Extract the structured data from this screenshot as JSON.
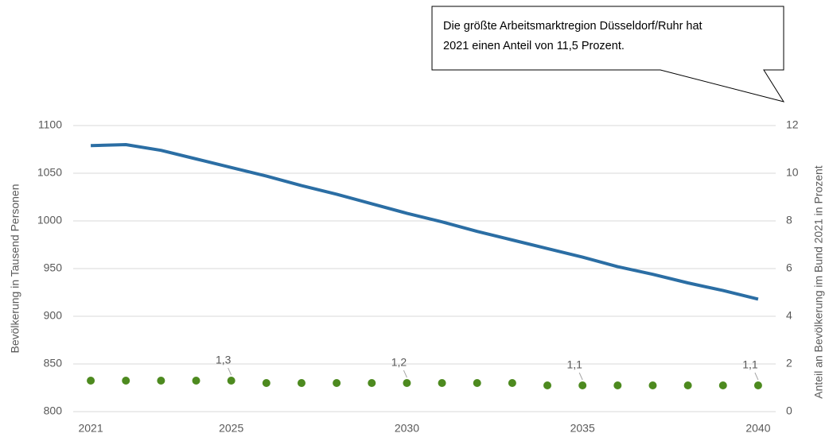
{
  "chart_data": {
    "type": "line",
    "annotation": [
      "Die größte Arbeitsmarktregion Düsseldorf/Ruhr hat",
      "2021 einen Anteil von 11,5 Prozent."
    ],
    "ylabel": "Bevölkerung in Tausend Personen",
    "y2label": "Anteil an Bevölkerung im Bund 2021 in Prozent",
    "categories": [
      "2021",
      null,
      null,
      null,
      "2025",
      null,
      null,
      null,
      null,
      "2030",
      null,
      null,
      null,
      null,
      "2035",
      null,
      null,
      null,
      null,
      "2040"
    ],
    "series": [
      {
        "name": "Bevölkerung",
        "type": "line",
        "color": "#2b6ea4",
        "axis": "y",
        "values": [
          1079,
          1080,
          1074,
          1065,
          1056,
          1047,
          1037,
          1028,
          1018,
          1008,
          999,
          989,
          980,
          971,
          962,
          952,
          944,
          935,
          927,
          918
        ]
      },
      {
        "name": "Anteil",
        "type": "scatter",
        "color": "#4d8a1f",
        "axis": "y2",
        "values": [
          1.3,
          1.3,
          1.3,
          1.3,
          1.3,
          1.2,
          1.2,
          1.2,
          1.2,
          1.2,
          1.2,
          1.2,
          1.2,
          1.1,
          1.1,
          1.1,
          1.1,
          1.1,
          1.1,
          1.1
        ],
        "value_labels": [
          null,
          null,
          null,
          null,
          "1,3",
          null,
          null,
          null,
          null,
          "1,2",
          null,
          null,
          null,
          null,
          "1,1",
          null,
          null,
          null,
          null,
          "1,1"
        ]
      }
    ],
    "ylim": [
      800,
      1100
    ],
    "yticks": [
      800,
      850,
      900,
      950,
      1000,
      1050,
      1100
    ],
    "y2lim": [
      0,
      12
    ],
    "y2ticks": [
      0,
      2,
      4,
      6,
      8,
      10,
      12
    ],
    "grid": true
  }
}
